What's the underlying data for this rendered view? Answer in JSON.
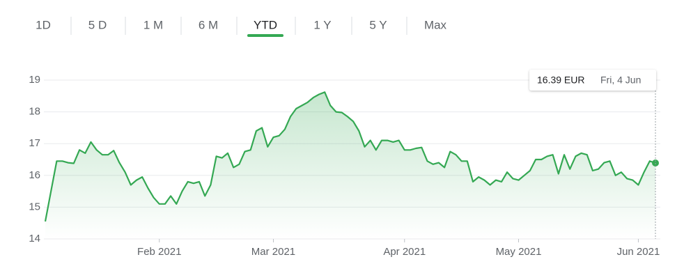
{
  "tabs": [
    "1D",
    "5 D",
    "1 M",
    "6 M",
    "YTD",
    "1 Y",
    "5 Y",
    "Max"
  ],
  "chart_data": {
    "type": "line",
    "categories": [
      null,
      null,
      null,
      null,
      null,
      null,
      null,
      null,
      null,
      null,
      null,
      null,
      null,
      null,
      null,
      null,
      null,
      null,
      null,
      null,
      "Feb 2021",
      null,
      null,
      null,
      null,
      null,
      null,
      null,
      null,
      null,
      null,
      null,
      null,
      null,
      null,
      null,
      null,
      null,
      null,
      null,
      "Mar 2021",
      null,
      null,
      null,
      null,
      null,
      null,
      null,
      null,
      null,
      null,
      null,
      null,
      null,
      null,
      null,
      null,
      null,
      null,
      null,
      null,
      null,
      null,
      "Apr 2021",
      null,
      null,
      null,
      null,
      null,
      null,
      null,
      null,
      null,
      null,
      null,
      null,
      null,
      null,
      null,
      null,
      null,
      null,
      null,
      "May 2021",
      null,
      null,
      null,
      null,
      null,
      null,
      null,
      null,
      null,
      null,
      null,
      null,
      null,
      null,
      null,
      null,
      null,
      null,
      null,
      null,
      "Jun 2021",
      null,
      null,
      null
    ],
    "values": [
      14.55,
      15.5,
      16.45,
      16.45,
      16.4,
      16.38,
      16.8,
      16.7,
      17.05,
      16.8,
      16.65,
      16.65,
      16.78,
      16.4,
      16.1,
      15.7,
      15.85,
      15.95,
      15.6,
      15.3,
      15.1,
      15.1,
      15.35,
      15.1,
      15.5,
      15.8,
      15.75,
      15.8,
      15.35,
      15.7,
      16.6,
      16.55,
      16.7,
      16.25,
      16.35,
      16.75,
      16.8,
      17.4,
      17.5,
      16.9,
      17.2,
      17.25,
      17.45,
      17.85,
      18.1,
      18.2,
      18.3,
      18.45,
      18.55,
      18.62,
      18.2,
      18.0,
      17.98,
      17.85,
      17.7,
      17.4,
      16.9,
      17.1,
      16.8,
      17.1,
      17.1,
      17.05,
      17.1,
      16.8,
      16.8,
      16.85,
      16.88,
      16.45,
      16.35,
      16.4,
      16.25,
      16.75,
      16.65,
      16.45,
      16.45,
      15.8,
      15.95,
      15.85,
      15.7,
      15.85,
      15.8,
      16.1,
      15.9,
      15.85,
      16.0,
      16.15,
      16.5,
      16.5,
      16.6,
      16.65,
      16.05,
      16.65,
      16.2,
      16.6,
      16.7,
      16.65,
      16.15,
      16.2,
      16.4,
      16.45,
      16.0,
      16.1,
      15.9,
      15.85,
      15.7,
      16.1,
      16.45,
      16.39
    ],
    "color": "#34a853",
    "ylim": [
      14,
      19
    ],
    "yticks": [
      14,
      15,
      16,
      17,
      18,
      19
    ],
    "grid": true,
    "tooltip": {
      "price": "16.39 EUR",
      "date": "Fri, 4 Jun"
    }
  }
}
